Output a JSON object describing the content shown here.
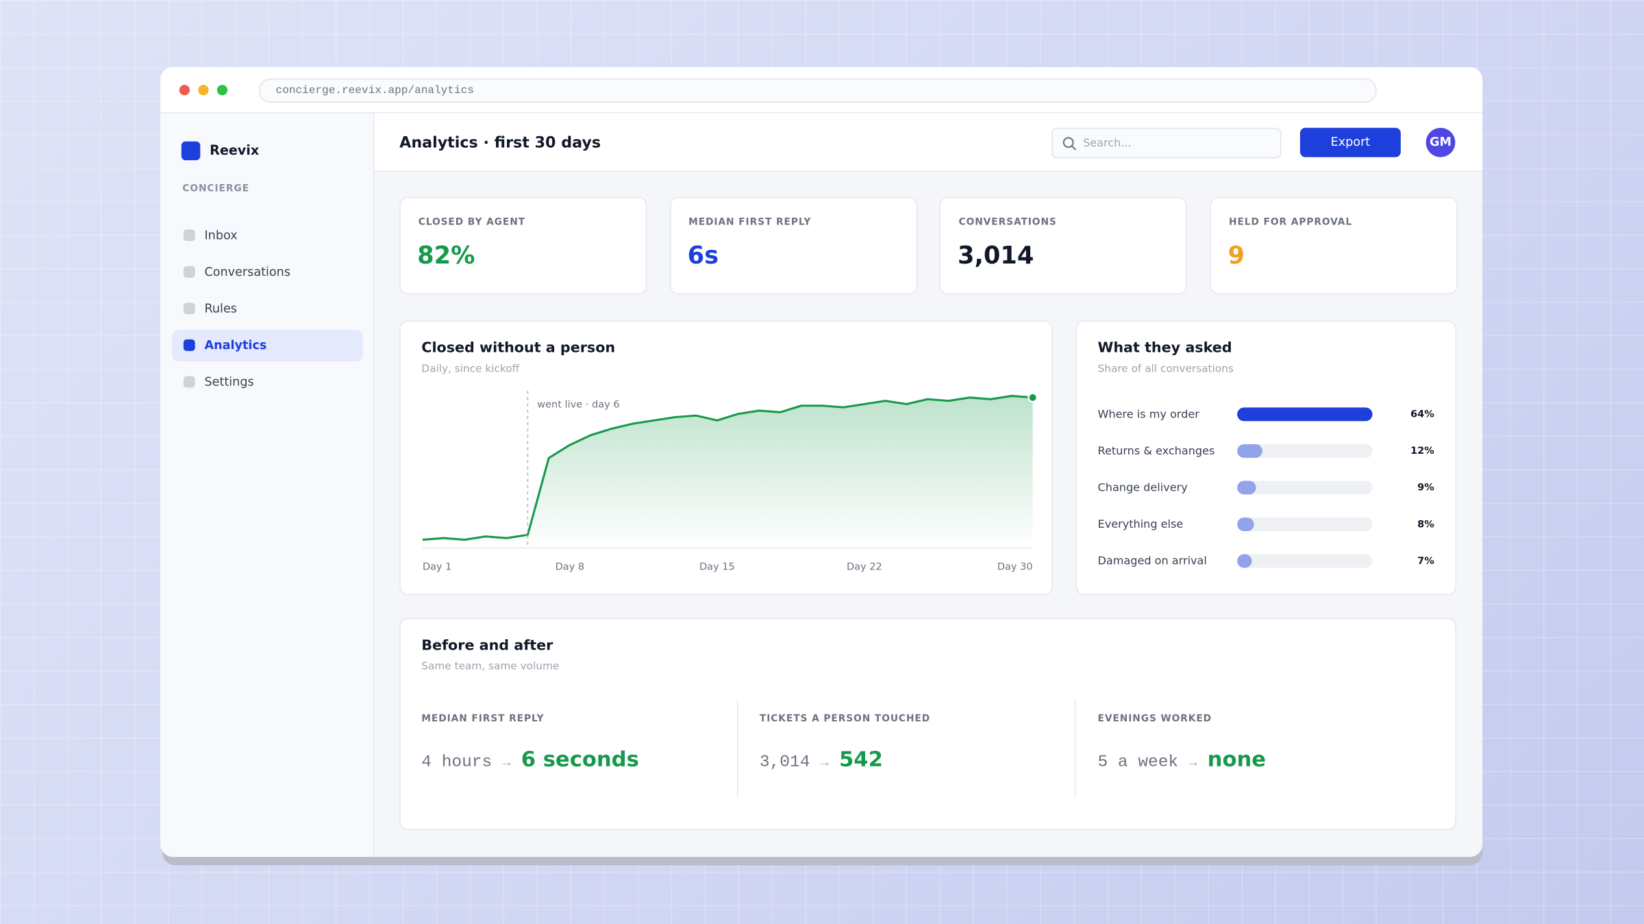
{
  "browser": {
    "url": "concierge.reevix.app/analytics"
  },
  "sidebar": {
    "brand": "Reevix",
    "section": "CONCIERGE",
    "nav": [
      {
        "label": "Inbox"
      },
      {
        "label": "Conversations"
      },
      {
        "label": "Rules"
      },
      {
        "label": "Analytics",
        "active": true
      },
      {
        "label": "Settings"
      }
    ]
  },
  "header": {
    "title": "Analytics · first 30 days",
    "search_placeholder": "Search...",
    "export": "Export",
    "avatar": "GM"
  },
  "kpis": [
    {
      "label": "CLOSED BY AGENT",
      "value": "82%",
      "color": "#17994b"
    },
    {
      "label": "MEDIAN FIRST REPLY",
      "value": "6s",
      "color": "#1d3fdb"
    },
    {
      "label": "CONVERSATIONS",
      "value": "3,014",
      "color": "#111827"
    },
    {
      "label": "HELD FOR APPROVAL",
      "value": "9",
      "color": "#f0a020"
    }
  ],
  "chart_data": [
    {
      "type": "line",
      "title": "Closed without a person",
      "subtitle": "Daily, since kickoff",
      "annotation": "went live · day 6",
      "categories": [
        "Day 1",
        null,
        null,
        null,
        null,
        null,
        null,
        "Day 8",
        null,
        null,
        null,
        null,
        null,
        null,
        "Day 15",
        null,
        null,
        null,
        null,
        null,
        null,
        "Day 22",
        null,
        null,
        null,
        null,
        null,
        null,
        null,
        "Day 30"
      ],
      "values": [
        5,
        6,
        5,
        7,
        6,
        8,
        55,
        63,
        69,
        73,
        76,
        78,
        80,
        81,
        78,
        82,
        84,
        83,
        87,
        87,
        86,
        88,
        90,
        88,
        91,
        90,
        92,
        91,
        93,
        92
      ],
      "ylim": [
        0,
        100
      ],
      "color": "#17994b"
    },
    {
      "type": "hbar",
      "title": "What they asked",
      "subtitle": "Share of all conversations",
      "categories": [
        "Where is my order",
        "Returns & exchanges",
        "Change delivery",
        "Everything else",
        "Damaged on arrival"
      ],
      "values": [
        64,
        12,
        9,
        8,
        7
      ],
      "value_labels": [
        "64%",
        "12%",
        "9%",
        "8%",
        "7%"
      ],
      "xlim": [
        0,
        64
      ],
      "colors": [
        "#1d3fdb",
        "#93a3ea",
        "#93a3ea",
        "#93a3ea",
        "#93a3ea"
      ]
    }
  ],
  "comparison": {
    "title": "Before and after",
    "subtitle": "Same team, same volume",
    "items": [
      {
        "label": "MEDIAN FIRST REPLY",
        "before": "4 hours",
        "after": "6 seconds"
      },
      {
        "label": "TICKETS A PERSON TOUCHED",
        "before": "3,014",
        "after": "542"
      },
      {
        "label": "EVENINGS WORKED",
        "before": "5 a week",
        "after": "none"
      }
    ]
  }
}
